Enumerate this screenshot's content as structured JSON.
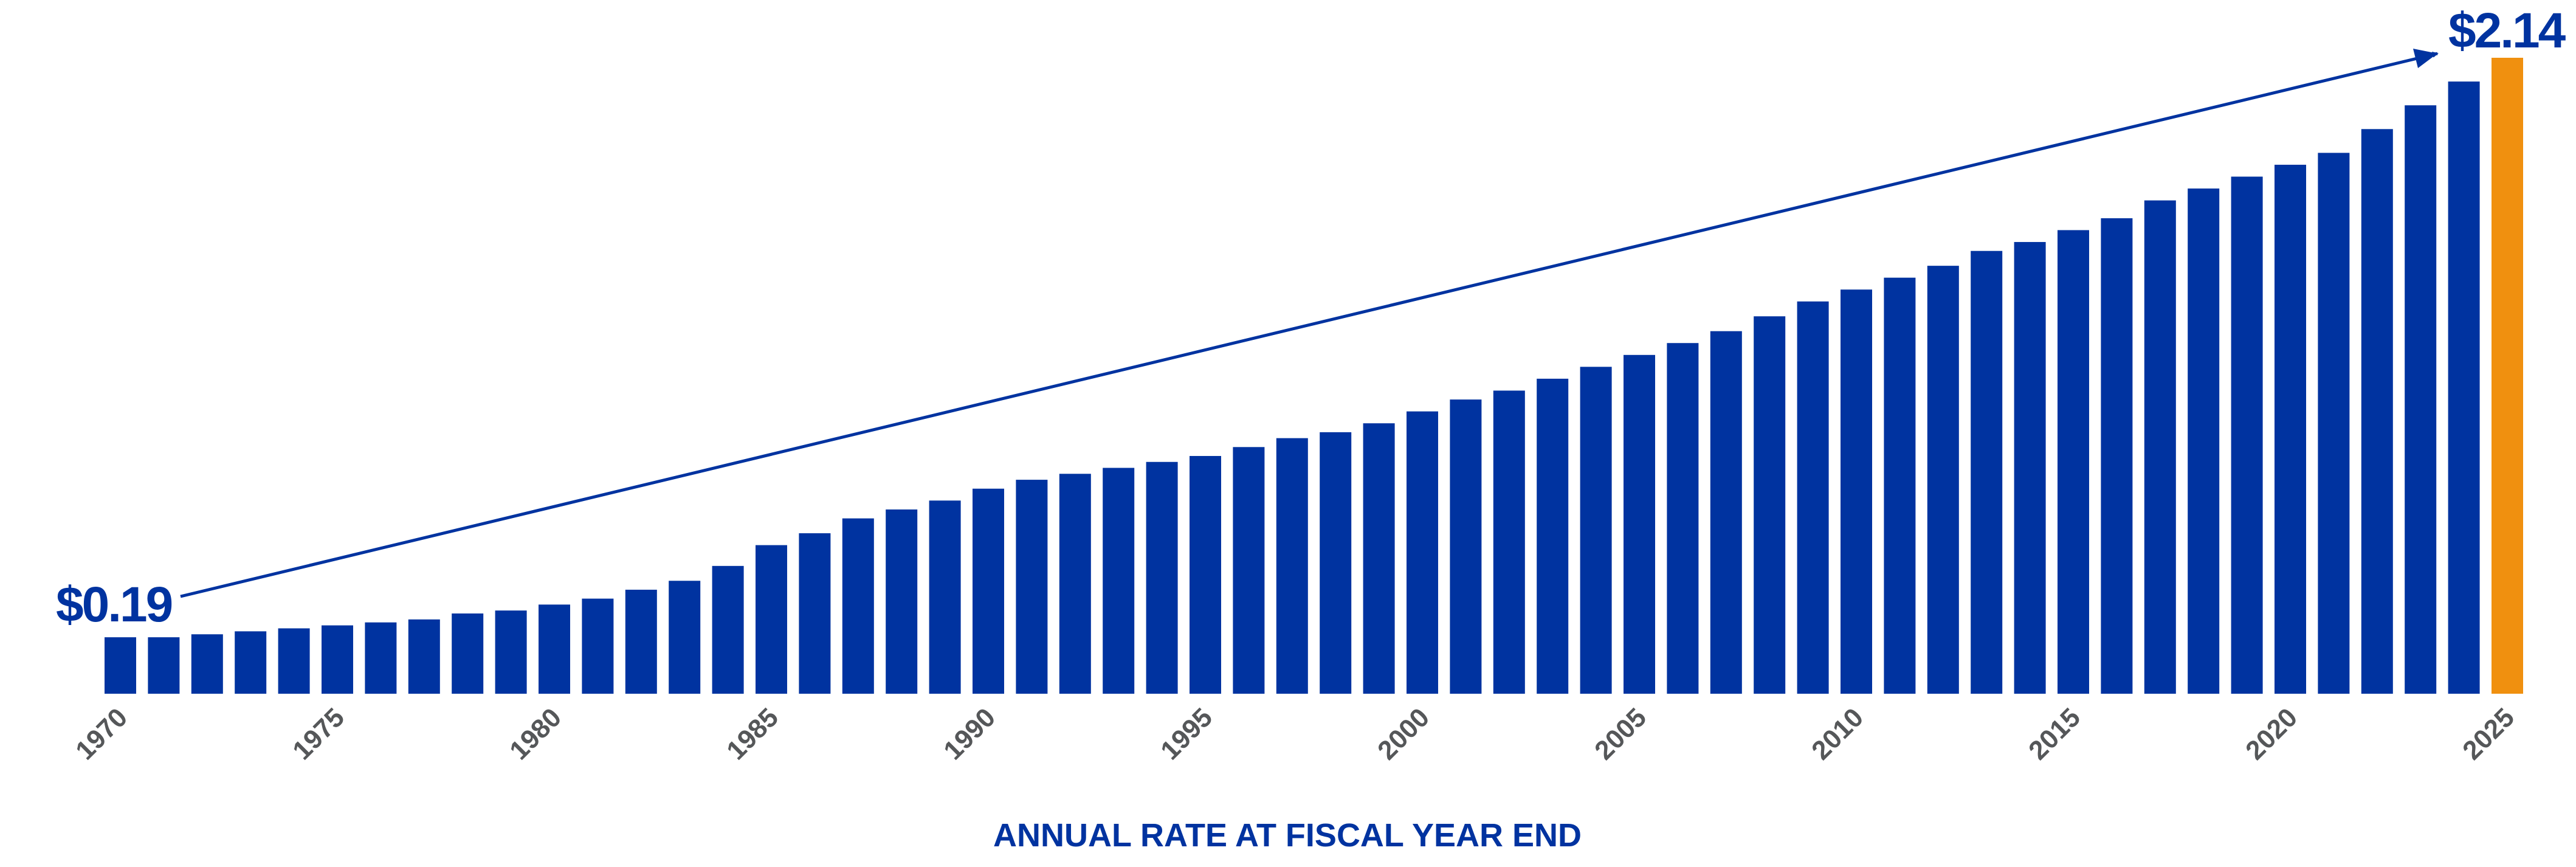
{
  "chart_data": {
    "type": "bar",
    "title": "",
    "xlabel": "ANNUAL RATE AT FISCAL YEAR END",
    "ylabel": "",
    "ylim": [
      0,
      2.14
    ],
    "grid": false,
    "categories": [
      1970,
      1971,
      1972,
      1973,
      1974,
      1975,
      1976,
      1977,
      1978,
      1979,
      1980,
      1981,
      1982,
      1983,
      1984,
      1985,
      1986,
      1987,
      1988,
      1989,
      1990,
      1991,
      1992,
      1993,
      1994,
      1995,
      1996,
      1997,
      1998,
      1999,
      2000,
      2001,
      2002,
      2003,
      2004,
      2005,
      2006,
      2007,
      2008,
      2009,
      2010,
      2011,
      2012,
      2013,
      2014,
      2015,
      2016,
      2017,
      2018,
      2019,
      2020,
      2021,
      2022,
      2023,
      2024,
      2025
    ],
    "values": [
      0.19,
      0.19,
      0.2,
      0.21,
      0.22,
      0.23,
      0.24,
      0.25,
      0.27,
      0.28,
      0.3,
      0.32,
      0.35,
      0.38,
      0.43,
      0.5,
      0.54,
      0.59,
      0.62,
      0.65,
      0.69,
      0.72,
      0.74,
      0.76,
      0.78,
      0.8,
      0.83,
      0.86,
      0.88,
      0.91,
      0.95,
      0.99,
      1.02,
      1.06,
      1.1,
      1.14,
      1.18,
      1.22,
      1.27,
      1.32,
      1.36,
      1.4,
      1.44,
      1.49,
      1.52,
      1.56,
      1.6,
      1.66,
      1.7,
      1.74,
      1.78,
      1.82,
      1.9,
      1.98,
      2.06,
      2.14
    ],
    "tick_labels": [
      "1970",
      "1975",
      "1980",
      "1985",
      "1990",
      "1995",
      "2000",
      "2005",
      "2010",
      "2015",
      "2020",
      "2025"
    ],
    "annotations": {
      "start": "$0.19",
      "end": "$2.14"
    },
    "colors": {
      "bar": "#0033a0",
      "highlight": "#f0900f",
      "highlight_year": 2025
    }
  }
}
